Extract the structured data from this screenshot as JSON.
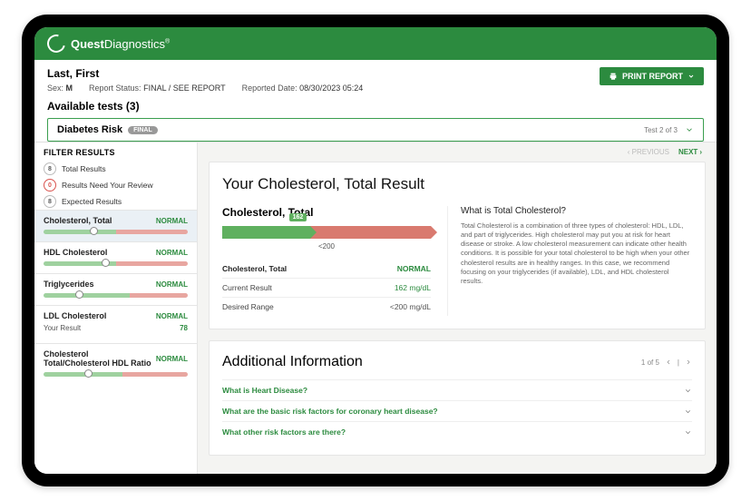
{
  "brand": {
    "name_bold": "Quest",
    "name_light": "Diagnostics",
    "reg": "®",
    "bar_color": "#2c8b3f"
  },
  "header": {
    "patient_name": "Last, First",
    "sex_label": "Sex:",
    "sex_value": "M",
    "status_label": "Report Status:",
    "status_value": "FINAL / SEE REPORT",
    "reported_label": "Reported Date:",
    "reported_value": "08/30/2023 05:24",
    "print_label": "PRINT REPORT"
  },
  "tests": {
    "available_label": "Available tests (3)",
    "current_name": "Diabetes Risk",
    "current_badge": "FINAL",
    "position": "Test 2 of 3"
  },
  "sidebar": {
    "filter_header": "FILTER RESULTS",
    "filters": [
      {
        "count": "8",
        "label": "Total Results",
        "zero": false
      },
      {
        "count": "0",
        "label": "Results Need Your Review",
        "zero": true
      },
      {
        "count": "8",
        "label": "Expected Results",
        "zero": false
      }
    ],
    "results": [
      {
        "name": "Cholesterol, Total",
        "status": "NORMAL",
        "knob_pct": 32,
        "green_pct": 50,
        "active": true
      },
      {
        "name": "HDL Cholesterol",
        "status": "NORMAL",
        "knob_pct": 40,
        "green_pct": 50
      },
      {
        "name": "Triglycerides",
        "status": "NORMAL",
        "knob_pct": 22,
        "green_pct": 60
      },
      {
        "name": "LDL Cholesterol",
        "status": "NORMAL",
        "sub_label": "Your Result",
        "sub_value": "78"
      },
      {
        "name": "Cholesterol Total/Cholesterol HDL Ratio",
        "status": "NORMAL",
        "knob_pct": 28,
        "green_pct": 55
      }
    ]
  },
  "main": {
    "prev_label": "PREVIOUS",
    "next_label": "NEXT",
    "panel_title": "Your Cholesterol, Total Result",
    "gauge": {
      "name": "Cholesterol, Total",
      "value_badge": "162",
      "threshold_label": "<200",
      "green_pct": 42,
      "green_color": "#5fb05f",
      "red_color": "#d97a6f"
    },
    "rows": [
      {
        "k": "Cholesterol, Total",
        "v": "NORMAL",
        "bold": true,
        "vclass": "green"
      },
      {
        "k": "Current Result",
        "v": "162 mg/dL",
        "vclass": "greenv"
      },
      {
        "k": "Desired Range",
        "v": "<200 mg/dL",
        "vclass": ""
      }
    ],
    "info": {
      "title": "What is Total Cholesterol?",
      "text": "Total Cholesterol is a combination of three types of cholesterol: HDL, LDL, and part of triglycerides. High cholesterol may put you at risk for heart disease or stroke. A low cholesterol measurement can indicate other health conditions. It is possible for your total cholesterol to be high when your other cholesterol results are in healthy ranges. In this case, we recommend focusing on your triglycerides (if available), LDL, and HDL cholesterol results."
    },
    "additional": {
      "title": "Additional Information",
      "pager": "1 of 5",
      "items": [
        "What is Heart Disease?",
        "What are the basic risk factors for coronary heart disease?",
        "What other risk factors are there?"
      ]
    }
  }
}
